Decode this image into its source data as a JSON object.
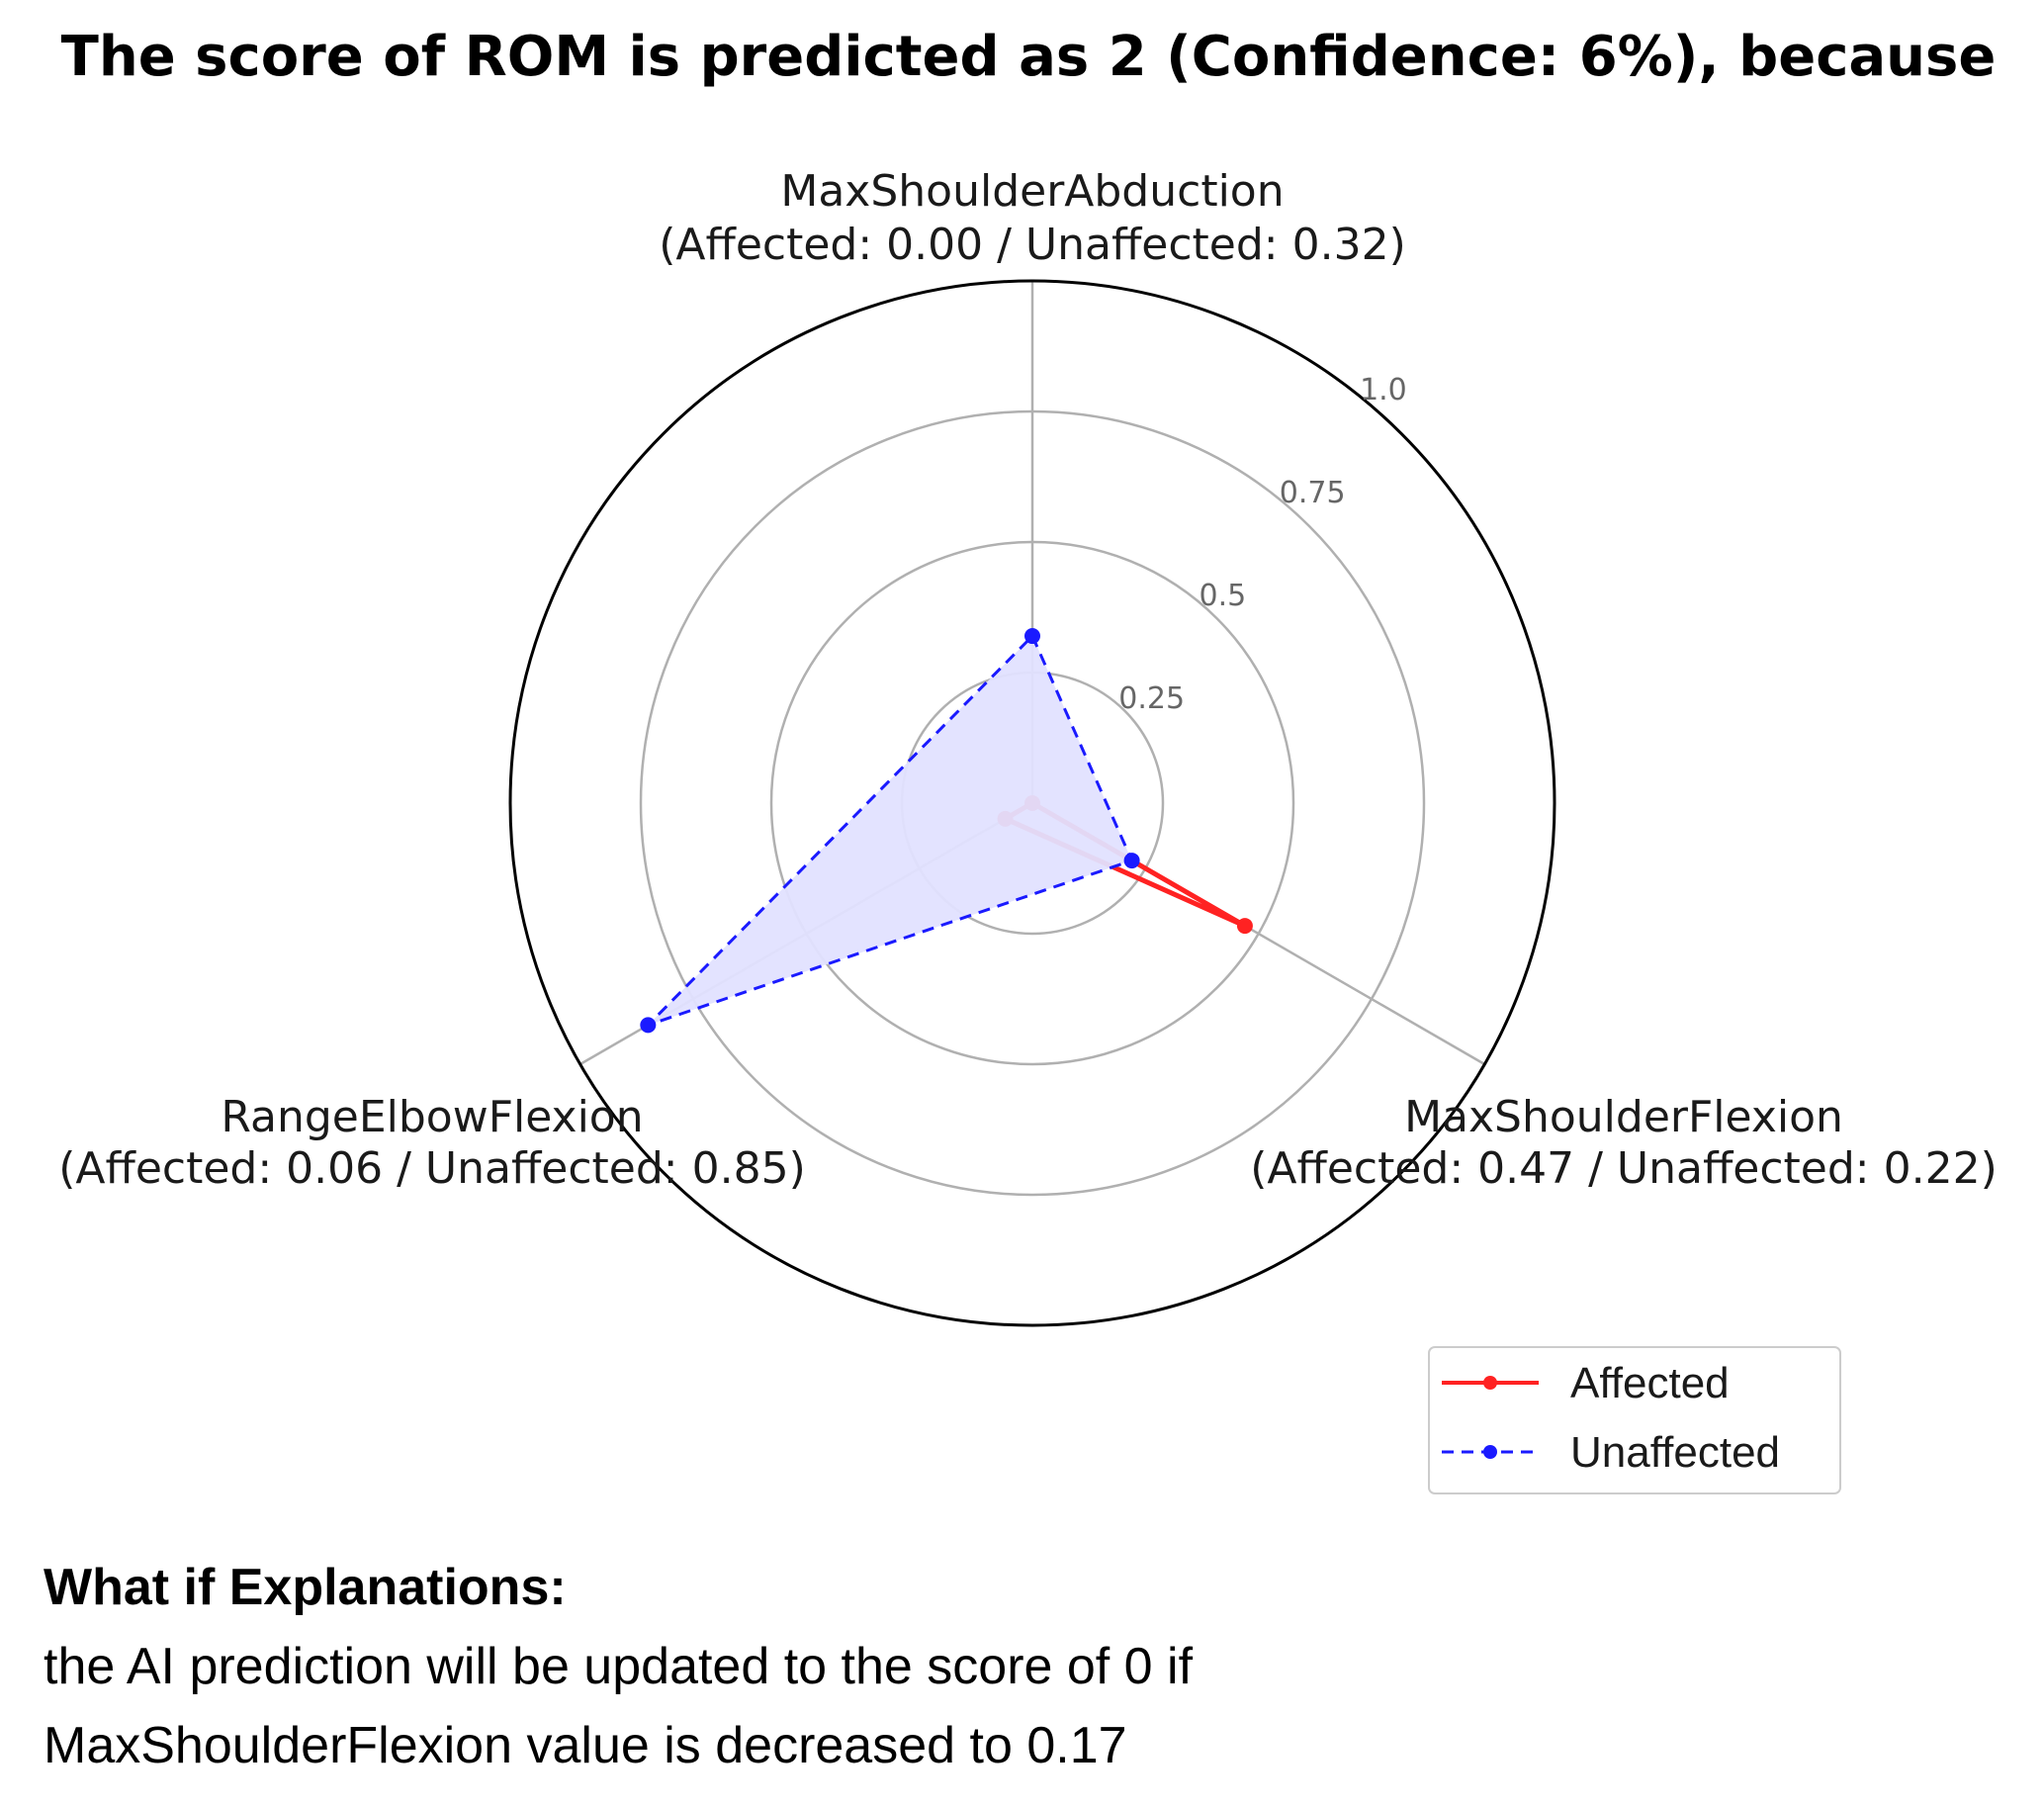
{
  "chart_data": {
    "type": "radar",
    "title": "The score of ROM is predicted as 2 (Confidence: 6%), because",
    "axes": [
      {
        "name": "MaxShoulderAbduction",
        "detail": "(Affected: 0.00 / Unaffected: 0.32)"
      },
      {
        "name": "MaxShoulderFlexion",
        "detail": "(Affected: 0.47 / Unaffected: 0.22)"
      },
      {
        "name": "RangeElbowFlexion",
        "detail": "(Affected: 0.06 / Unaffected: 0.85)"
      }
    ],
    "series": [
      {
        "name": "Affected",
        "values": [
          0.0,
          0.47,
          0.06
        ],
        "color": "#ff2222",
        "style": "solid",
        "fill": false
      },
      {
        "name": "Unaffected",
        "values": [
          0.32,
          0.22,
          0.85
        ],
        "color": "#1a1aff",
        "style": "dashed",
        "fill": true,
        "fill_color": "#e2e2ff"
      }
    ],
    "radial_ticks": [
      "0.25",
      "0.5",
      "0.75",
      "1.0"
    ],
    "radial_tick_values": [
      0.25,
      0.5,
      0.75,
      1.0
    ],
    "rlim": [
      0,
      1.0
    ],
    "grid": true,
    "legend_position": "bottom-right"
  },
  "explanation": {
    "heading": "What if Explanations:",
    "line1": "the AI prediction will be updated to the score of 0 if",
    "line2": "MaxShoulderFlexion value is decreased to 0.17"
  }
}
